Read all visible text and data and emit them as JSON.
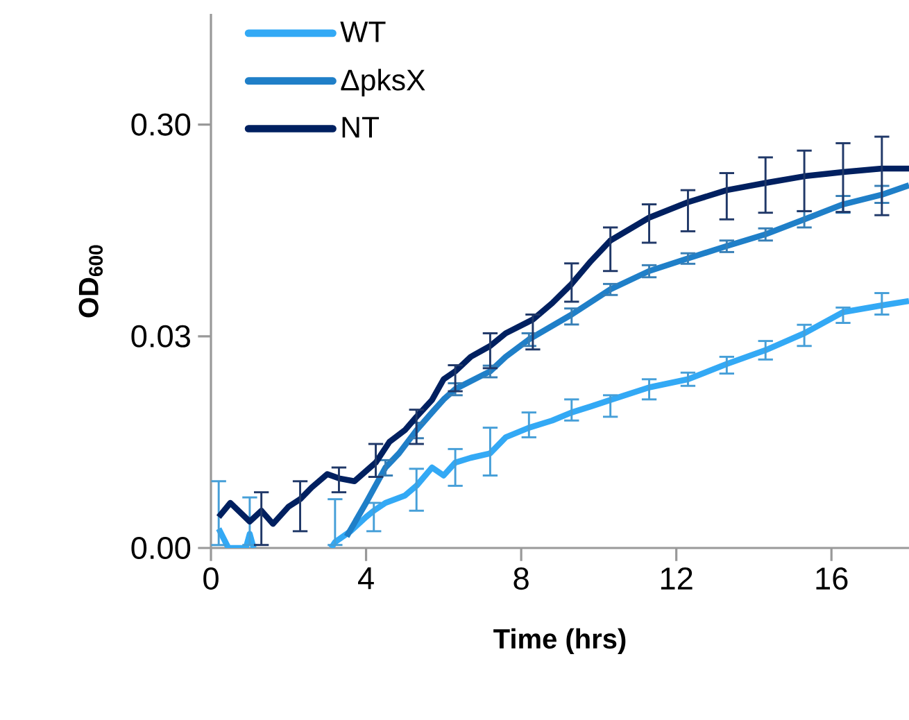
{
  "chart_data": {
    "type": "line",
    "xlabel": "Time (hrs)",
    "ylabel": "OD$_{600}$",
    "xlim": [
      0,
      18
    ],
    "xticks": [
      0,
      4,
      8,
      12,
      16
    ],
    "ylim": [
      0.003,
      1
    ],
    "yticks": [
      {
        "value": 0.003,
        "label": "0.00"
      },
      {
        "value": 0.03,
        "label": "0.03"
      },
      {
        "value": 0.3,
        "label": "0.30"
      }
    ],
    "log": "y",
    "grid": false,
    "legend": "top left",
    "marker": "none",
    "line_style": "solid",
    "series": [
      {
        "name": "WT",
        "color": "#33a9f5",
        "x": [
          0.2,
          0.45,
          0.9,
          1.0,
          1.1,
          2.0,
          3.1,
          3.2,
          3.6,
          4.0,
          4.2,
          4.5,
          5.0,
          5.3,
          5.7,
          6.0,
          6.3,
          6.7,
          7.2,
          7.6,
          8.2,
          8.8,
          9.3,
          9.8,
          10.3,
          11.3,
          12.3,
          13.3,
          14.3,
          15.3,
          16.3,
          17.3,
          18.0
        ],
        "values": [
          0.0037,
          0.003,
          0.003,
          0.0035,
          0.003,
          null,
          0.003,
          0.0032,
          0.0036,
          0.0042,
          0.0045,
          0.0049,
          0.0053,
          0.0059,
          0.0072,
          0.0066,
          0.0076,
          0.008,
          0.0084,
          0.01,
          0.0111,
          0.012,
          0.0131,
          0.014,
          0.015,
          0.0172,
          0.0188,
          0.0222,
          0.0258,
          0.031,
          0.039,
          0.042,
          0.044
        ],
        "errors": [
          [
            0.0031,
            0.0062
          ],
          null,
          null,
          [
            0.0031,
            0.0052
          ],
          null,
          null,
          null,
          [
            0.0031,
            0.0051
          ],
          null,
          null,
          [
            0.0036,
            0.0049
          ],
          null,
          null,
          [
            0.0045,
            0.0071
          ],
          null,
          null,
          [
            0.0059,
            0.0088
          ],
          null,
          [
            0.0066,
            0.0111
          ],
          null,
          [
            0.01,
            0.0131
          ],
          null,
          [
            0.012,
            0.0151
          ],
          null,
          [
            0.0125,
            0.0158
          ],
          [
            0.0151,
            0.0188
          ],
          [
            0.0175,
            0.0202
          ],
          [
            0.02,
            0.024
          ],
          [
            0.0233,
            0.0285
          ],
          [
            0.027,
            0.034
          ],
          [
            0.0347,
            0.041
          ],
          [
            0.038,
            0.048
          ],
          null
        ]
      },
      {
        "name": "ΔpksX",
        "color": "#1f7fc8",
        "x": [
          3.5,
          4.0,
          4.5,
          4.85,
          5.3,
          5.7,
          6.0,
          6.3,
          7.2,
          7.6,
          8.2,
          9.3,
          10.3,
          11.3,
          12.3,
          13.3,
          14.3,
          15.3,
          16.3,
          17.3,
          18.0
        ],
        "values": [
          0.0034,
          0.0049,
          0.0072,
          0.0084,
          0.0108,
          0.0131,
          0.0151,
          0.0169,
          0.0205,
          0.024,
          0.029,
          0.038,
          0.05,
          0.061,
          0.07,
          0.08,
          0.091,
          0.107,
          0.126,
          0.14,
          0.155
        ],
        "errors": [
          null,
          null,
          [
            0.0066,
            0.0078
          ],
          null,
          [
            0.0099,
            0.0117
          ],
          null,
          null,
          [
            0.0158,
            0.018
          ],
          [
            0.0192,
            0.0218
          ],
          null,
          [
            0.027,
            0.031
          ],
          [
            0.0341,
            0.0406
          ],
          [
            0.047,
            0.053
          ],
          [
            0.057,
            0.065
          ],
          [
            0.066,
            0.074
          ],
          [
            0.075,
            0.085
          ],
          [
            0.085,
            0.097
          ],
          [
            0.098,
            0.117
          ],
          [
            0.115,
            0.138
          ],
          [
            0.128,
            0.154
          ],
          null
        ]
      },
      {
        "name": "NT",
        "color": "#002060",
        "x": [
          0.2,
          0.5,
          1.0,
          1.3,
          1.6,
          2.0,
          2.3,
          2.6,
          3.0,
          3.3,
          3.7,
          4.25,
          4.6,
          5.0,
          5.3,
          5.7,
          6.0,
          6.3,
          6.7,
          7.2,
          7.6,
          8.3,
          8.8,
          9.3,
          9.8,
          10.3,
          11.3,
          12.3,
          13.3,
          14.3,
          15.3,
          16.3,
          17.3,
          18.0
        ],
        "values": [
          0.0042,
          0.0049,
          0.004,
          0.0045,
          0.0039,
          0.0047,
          0.0051,
          0.0058,
          0.0067,
          0.0064,
          0.0062,
          0.0076,
          0.0095,
          0.0108,
          0.0125,
          0.015,
          0.0188,
          0.0205,
          0.024,
          0.027,
          0.031,
          0.036,
          0.043,
          0.053,
          0.068,
          0.085,
          0.109,
          0.129,
          0.147,
          0.159,
          0.171,
          0.179,
          0.186,
          0.186
        ],
        "errors": [
          null,
          null,
          null,
          [
            0.0031,
            0.0055
          ],
          null,
          null,
          [
            0.0036,
            0.0062
          ],
          null,
          null,
          [
            0.0055,
            0.0072
          ],
          null,
          [
            0.0065,
            0.0093
          ],
          null,
          null,
          [
            0.0093,
            0.0135
          ],
          null,
          null,
          [
            0.0165,
            0.0219
          ],
          null,
          [
            0.0212,
            0.031
          ],
          null,
          [
            0.026,
            0.038
          ],
          null,
          [
            0.0437,
            0.0663
          ],
          null,
          [
            0.061,
            0.098
          ],
          [
            0.083,
            0.126
          ],
          [
            0.094,
            0.147
          ],
          [
            0.107,
            0.177
          ],
          [
            0.115,
            0.21
          ],
          [
            0.117,
            0.226
          ],
          [
            0.116,
            0.245
          ],
          [
            0.112,
            0.263
          ],
          null
        ]
      }
    ]
  }
}
